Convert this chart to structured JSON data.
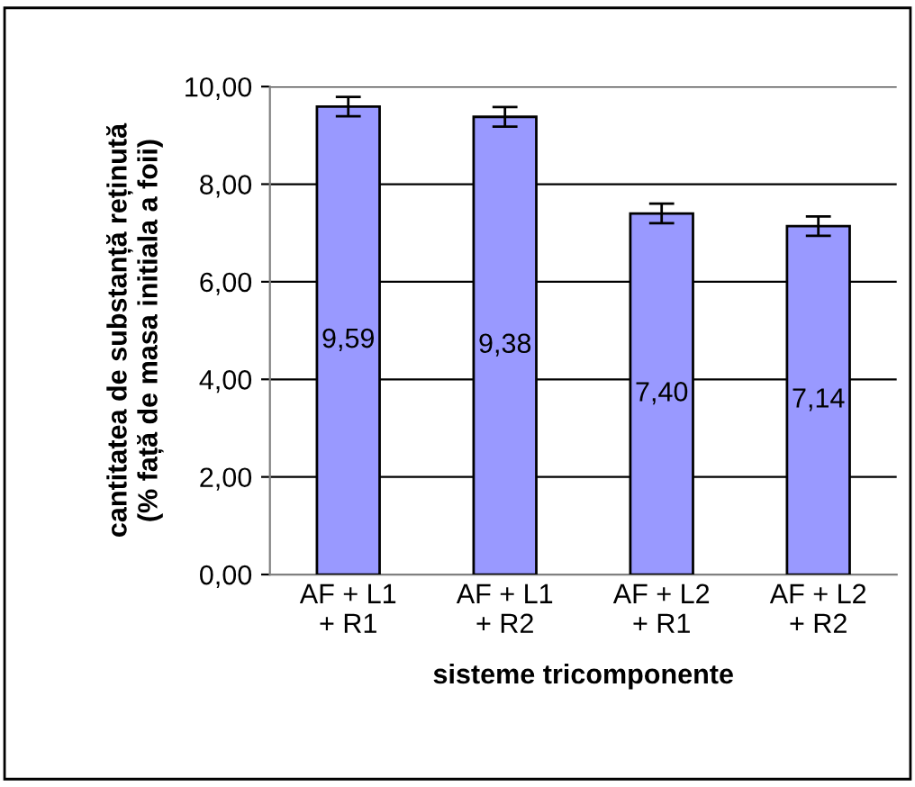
{
  "chart_data": {
    "type": "bar",
    "categories": [
      "AF + L1\n+ R1",
      "AF + L1\n+ R2",
      "AF + L2\n+ R1",
      "AF + L2\n+ R2"
    ],
    "values": [
      9.59,
      9.38,
      7.4,
      7.14
    ],
    "errors": [
      0.2,
      0.2,
      0.2,
      0.2
    ],
    "value_labels": [
      "9,59",
      "9,38",
      "7,40",
      "7,14"
    ],
    "color": "#9999ff",
    "xlabel": "sisteme tricomponente",
    "ylabel": "cantitatea de substanță reținută\n(% față de masa initiala a foii)",
    "ylim": [
      0,
      10
    ],
    "yticks": [
      {
        "value": 0,
        "label": "0,00"
      },
      {
        "value": 2,
        "label": "2,00"
      },
      {
        "value": 4,
        "label": "4,00"
      },
      {
        "value": 6,
        "label": "6,00"
      },
      {
        "value": 8,
        "label": "8,00"
      },
      {
        "value": 10,
        "label": "10,00"
      }
    ],
    "grid": "y"
  }
}
